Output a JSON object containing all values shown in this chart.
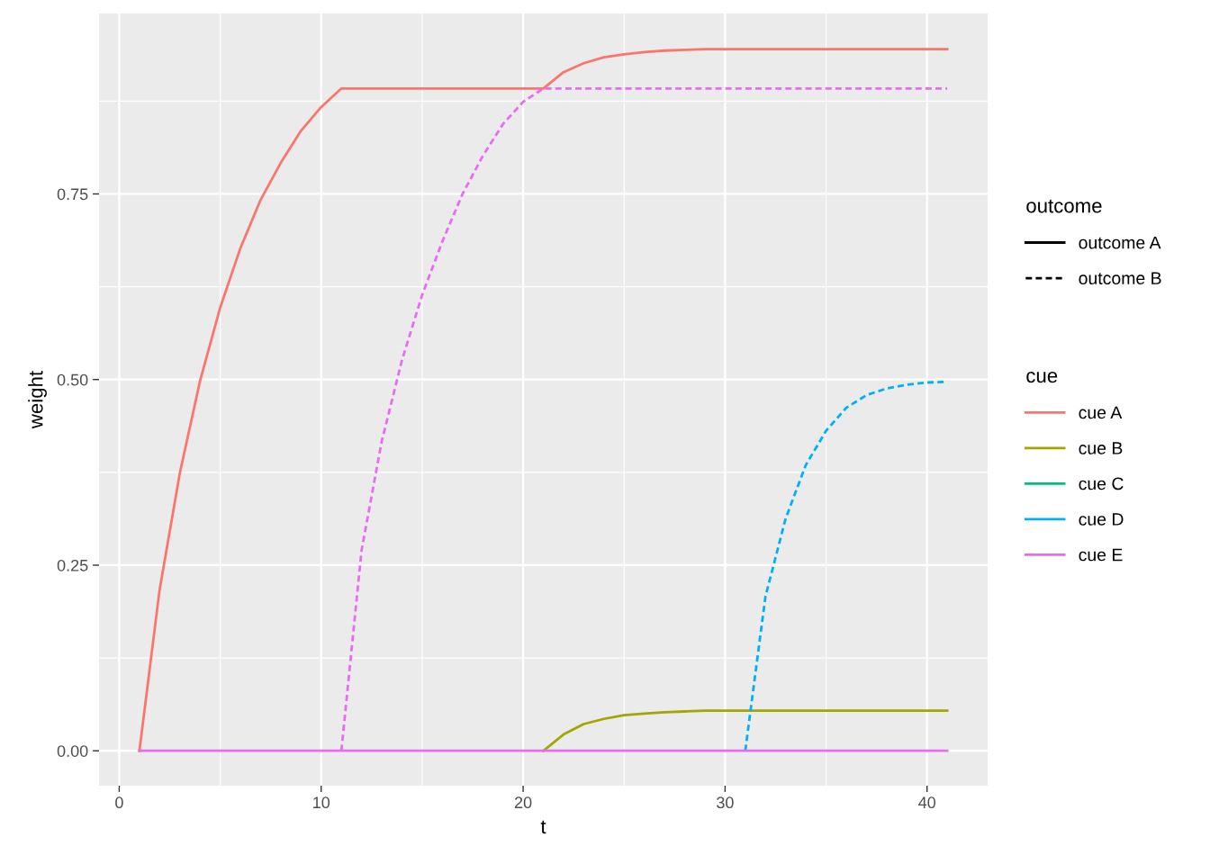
{
  "chart_data": {
    "type": "line",
    "xlabel": "t",
    "ylabel": "weight",
    "legend_title": "cue",
    "legend": "right",
    "grid": true,
    "xlim": [
      -1,
      43
    ],
    "xticks": [
      0,
      10,
      20,
      30,
      40
    ],
    "ylim": [
      -0.047,
      0.993
    ],
    "yticks": [
      {
        "value": 0,
        "label": "0.00"
      },
      {
        "value": 0.25,
        "label": "0.25"
      },
      {
        "value": 0.5,
        "label": "0.50"
      },
      {
        "value": 0.75,
        "label": "0.75"
      }
    ],
    "annotations": [
      "outcome",
      "outcome A",
      "outcome B"
    ],
    "series": [
      {
        "name": "cue A",
        "color": "#f8766d",
        "line_style": "solid",
        "x": [
          1,
          2,
          3,
          4,
          5,
          6,
          7,
          8,
          9,
          10,
          11,
          21,
          22,
          23,
          24,
          25,
          26,
          27,
          28,
          29,
          41
        ],
        "values": [
          0,
          0.217,
          0.374,
          0.498,
          0.597,
          0.677,
          0.742,
          0.792,
          0.835,
          0.867,
          0.892,
          0.892,
          0.914,
          0.926,
          0.934,
          0.938,
          0.941,
          0.943,
          0.944,
          0.945,
          0.945
        ]
      },
      {
        "name": "cue B",
        "color": "#a3a500",
        "line_style": "solid",
        "x": [
          21,
          22,
          23,
          24,
          25,
          26,
          27,
          28,
          29,
          41
        ],
        "values": [
          0,
          0.022,
          0.036,
          0.043,
          0.048,
          0.05,
          0.052,
          0.053,
          0.054,
          0.054
        ]
      },
      {
        "name": "cue C",
        "color": "#00bf7d",
        "line_style": "solid"
      },
      {
        "name": "cue D",
        "color": "#00b0f6",
        "line_style": "dotted",
        "x": [
          31,
          32,
          33,
          34,
          35,
          36,
          37,
          38,
          39,
          40,
          41
        ],
        "values": [
          0,
          0.208,
          0.313,
          0.385,
          0.431,
          0.462,
          0.479,
          0.488,
          0.493,
          0.496,
          0.497
        ]
      },
      {
        "name": "cue E",
        "color": "#e76bf3",
        "line_style": "dotted",
        "x": [
          11,
          12,
          13,
          14,
          15,
          16,
          17,
          18,
          19,
          20,
          21,
          41
        ],
        "values": [
          0,
          0.27,
          0.417,
          0.526,
          0.614,
          0.686,
          0.75,
          0.801,
          0.844,
          0.874,
          0.892,
          0.892
        ]
      },
      {
        "color": "#e76bf3",
        "line_style": "solid",
        "x": [
          1,
          41
        ],
        "values": [
          0,
          0
        ]
      }
    ]
  }
}
